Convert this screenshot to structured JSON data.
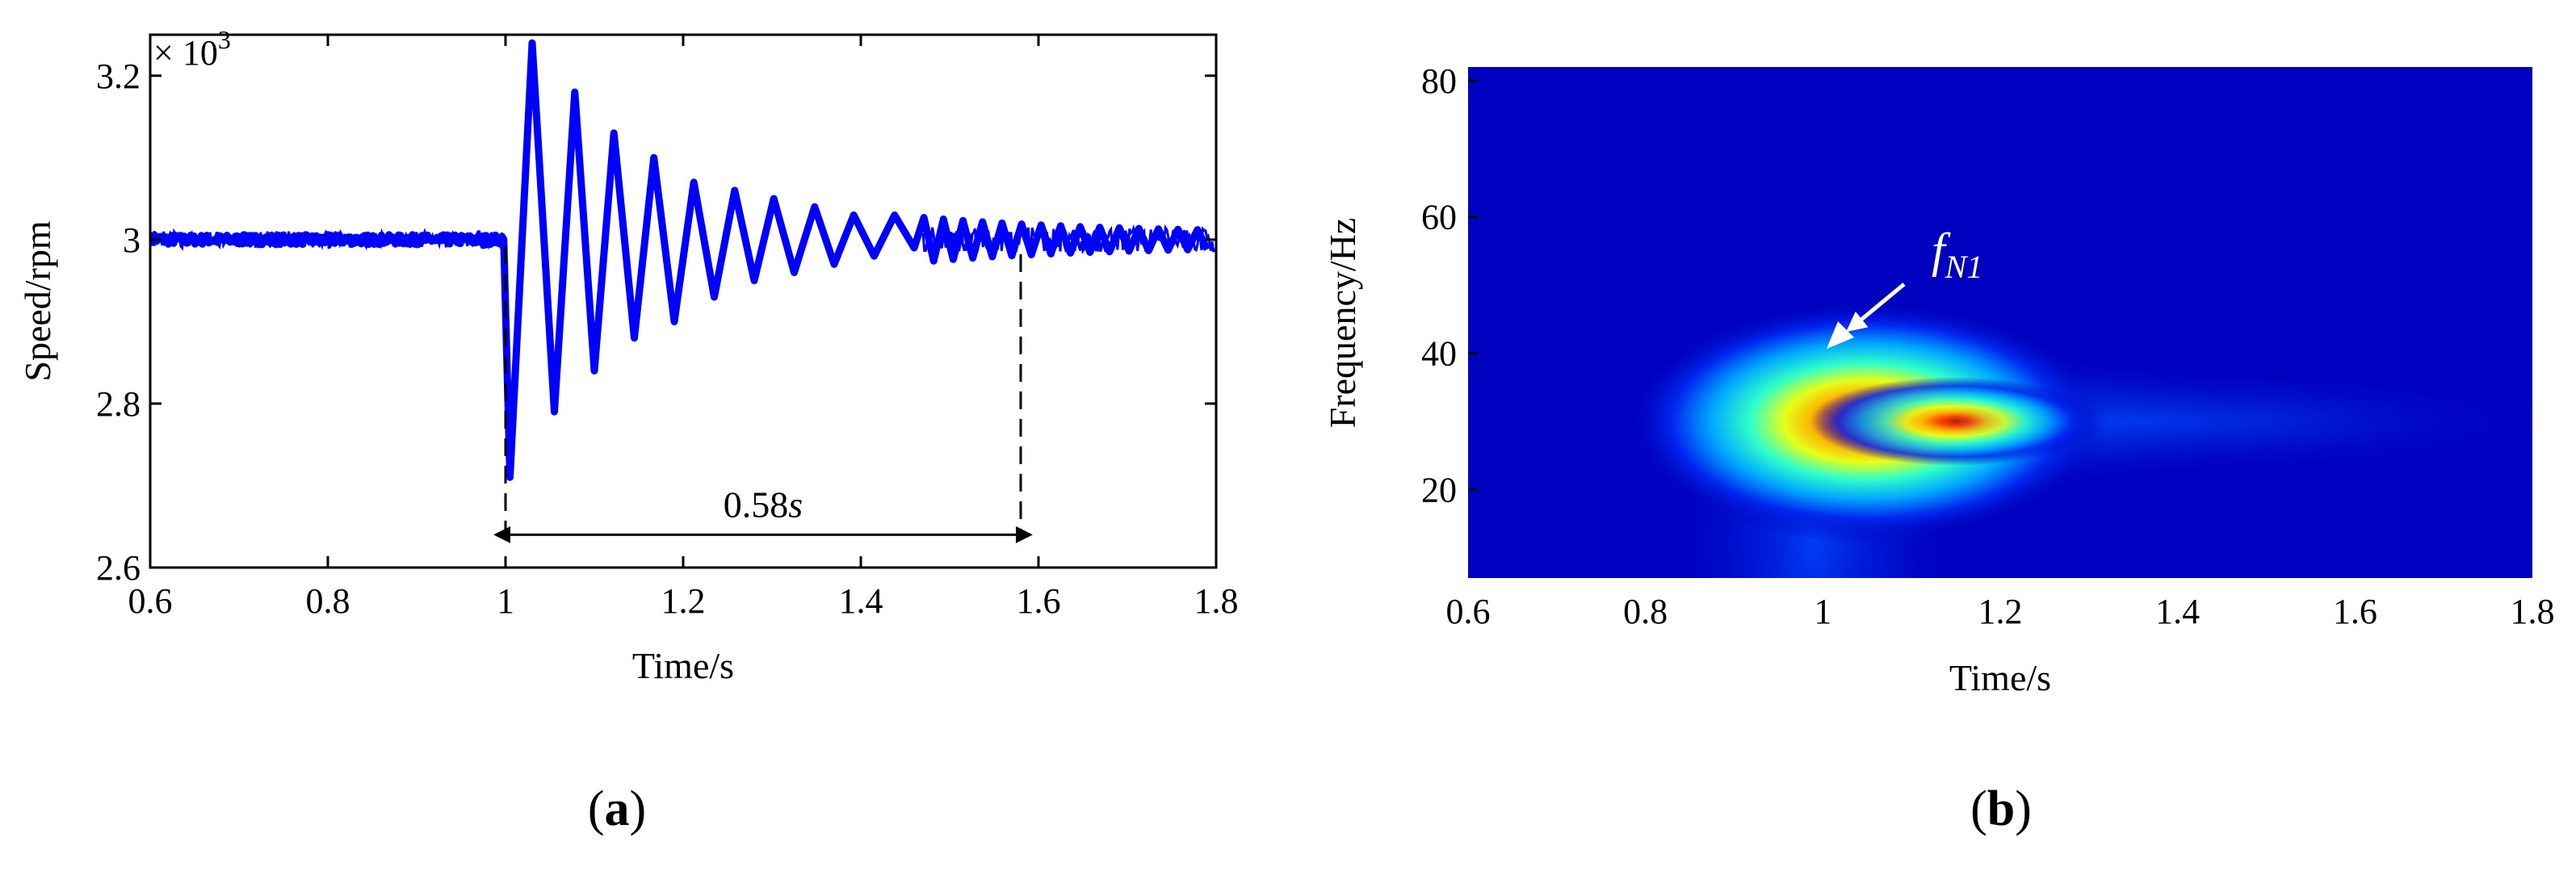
{
  "chart_data": [
    {
      "panel": "(a)",
      "type": "line",
      "xlabel": "Time/s",
      "ylabel": "Speed/rpm",
      "y_multiplier": "× 10",
      "y_multiplier_exp": "3",
      "xlim": [
        0.6,
        1.8
      ],
      "ylim": [
        2.6,
        3.25
      ],
      "x_ticks": [
        "0.6",
        "0.8",
        "1",
        "1.2",
        "1.4",
        "1.6",
        "1.8"
      ],
      "y_ticks": [
        "2.6",
        "2.8",
        "3",
        "3.2"
      ],
      "grid": false,
      "color": "#0000ff",
      "steady_value": 3.0,
      "disturbance_time": 1.0,
      "settle_time": 1.58,
      "peaks": [
        {
          "x": 1.005,
          "y": 2.71
        },
        {
          "x": 1.03,
          "y": 3.24
        },
        {
          "x": 1.055,
          "y": 2.79
        },
        {
          "x": 1.078,
          "y": 3.18
        },
        {
          "x": 1.1,
          "y": 2.84
        },
        {
          "x": 1.122,
          "y": 3.13
        },
        {
          "x": 1.145,
          "y": 2.88
        },
        {
          "x": 1.167,
          "y": 3.1
        },
        {
          "x": 1.19,
          "y": 2.9
        },
        {
          "x": 1.212,
          "y": 3.07
        },
        {
          "x": 1.235,
          "y": 2.93
        },
        {
          "x": 1.258,
          "y": 3.06
        },
        {
          "x": 1.28,
          "y": 2.95
        },
        {
          "x": 1.302,
          "y": 3.05
        },
        {
          "x": 1.325,
          "y": 2.96
        },
        {
          "x": 1.348,
          "y": 3.04
        },
        {
          "x": 1.37,
          "y": 2.97
        },
        {
          "x": 1.392,
          "y": 3.03
        },
        {
          "x": 1.415,
          "y": 2.98
        },
        {
          "x": 1.438,
          "y": 3.03
        },
        {
          "x": 1.46,
          "y": 2.99
        }
      ],
      "annotation": {
        "number": "0.58",
        "unit": "s"
      }
    },
    {
      "panel": "(b)",
      "type": "heatmap",
      "xlabel": "Time/s",
      "ylabel": "Frequency/Hz",
      "xlim": [
        0.6,
        1.8
      ],
      "ylim": [
        7,
        82
      ],
      "x_ticks": [
        "0.6",
        "0.8",
        "1",
        "1.2",
        "1.4",
        "1.6",
        "1.8"
      ],
      "y_ticks": [
        "20",
        "40",
        "60",
        "80"
      ],
      "colormap": "jet",
      "peak": {
        "time": 1.04,
        "frequency": 30
      },
      "annotation": {
        "text": "f",
        "subscript": "N1"
      }
    }
  ]
}
